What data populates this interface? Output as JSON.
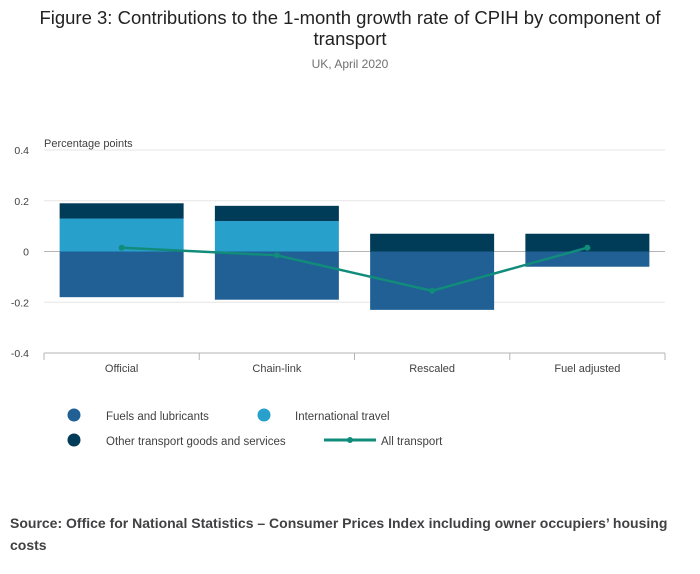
{
  "chart_data": {
    "type": "bar",
    "title": "Figure 3: Contributions to the 1-month growth rate of CPIH by component of transport",
    "subtitle": "UK, April 2020",
    "ylabel": "Percentage points",
    "ylim": [
      -0.4,
      0.4
    ],
    "yticks": [
      "0.4",
      "0.2",
      "0",
      "-0.2",
      "-0.4"
    ],
    "grid": true,
    "legend_position": "bottom",
    "categories": [
      "Official",
      "Chain-link",
      "Rescaled",
      "Fuel adjusted"
    ],
    "series": [
      {
        "name": "Fuels and lubricants",
        "kind": "bar",
        "color": "#206095",
        "values": [
          -0.18,
          -0.19,
          -0.23,
          -0.06
        ]
      },
      {
        "name": "International travel",
        "kind": "bar",
        "color": "#27a0cc",
        "values": [
          0.13,
          0.12,
          0.0,
          0.0
        ]
      },
      {
        "name": "Other transport goods and services",
        "kind": "bar",
        "color": "#003c57",
        "values": [
          0.06,
          0.06,
          0.07,
          0.07
        ]
      },
      {
        "name": "All transport",
        "kind": "line",
        "color": "#118c7b",
        "values": [
          0.015,
          -0.015,
          -0.155,
          0.015
        ]
      }
    ]
  },
  "source": "Source: Office for National Statistics – Consumer Prices Index including owner occupiers’ housing costs"
}
